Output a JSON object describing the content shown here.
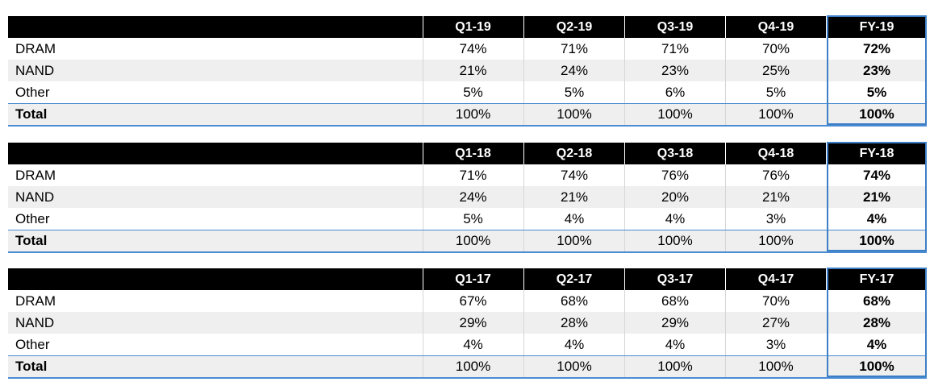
{
  "tables": [
    {
      "headers": [
        "Q1-19",
        "Q2-19",
        "Q3-19",
        "Q4-19",
        "FY-19"
      ],
      "rows": [
        {
          "label": "DRAM",
          "values": [
            "74%",
            "71%",
            "71%",
            "70%",
            "72%"
          ]
        },
        {
          "label": "NAND",
          "values": [
            "21%",
            "24%",
            "23%",
            "25%",
            "23%"
          ]
        },
        {
          "label": "Other",
          "values": [
            "5%",
            "5%",
            "6%",
            "5%",
            "5%"
          ]
        },
        {
          "label": "Total",
          "values": [
            "100%",
            "100%",
            "100%",
            "100%",
            "100%"
          ]
        }
      ]
    },
    {
      "headers": [
        "Q1-18",
        "Q2-18",
        "Q3-18",
        "Q4-18",
        "FY-18"
      ],
      "rows": [
        {
          "label": "DRAM",
          "values": [
            "71%",
            "74%",
            "76%",
            "76%",
            "74%"
          ]
        },
        {
          "label": "NAND",
          "values": [
            "24%",
            "21%",
            "20%",
            "21%",
            "21%"
          ]
        },
        {
          "label": "Other",
          "values": [
            "5%",
            "4%",
            "4%",
            "3%",
            "4%"
          ]
        },
        {
          "label": "Total",
          "values": [
            "100%",
            "100%",
            "100%",
            "100%",
            "100%"
          ]
        }
      ]
    },
    {
      "headers": [
        "Q1-17",
        "Q2-17",
        "Q3-17",
        "Q4-17",
        "FY-17"
      ],
      "rows": [
        {
          "label": "DRAM",
          "values": [
            "67%",
            "68%",
            "68%",
            "70%",
            "68%"
          ]
        },
        {
          "label": "NAND",
          "values": [
            "29%",
            "28%",
            "29%",
            "27%",
            "28%"
          ]
        },
        {
          "label": "Other",
          "values": [
            "4%",
            "4%",
            "4%",
            "3%",
            "4%"
          ]
        },
        {
          "label": "Total",
          "values": [
            "100%",
            "100%",
            "100%",
            "100%",
            "100%"
          ]
        }
      ]
    }
  ],
  "colors": {
    "header_bg": "#000000",
    "header_text": "#ffffff",
    "shade_row": "#efefef",
    "accent_blue": "#3d7fc6"
  }
}
